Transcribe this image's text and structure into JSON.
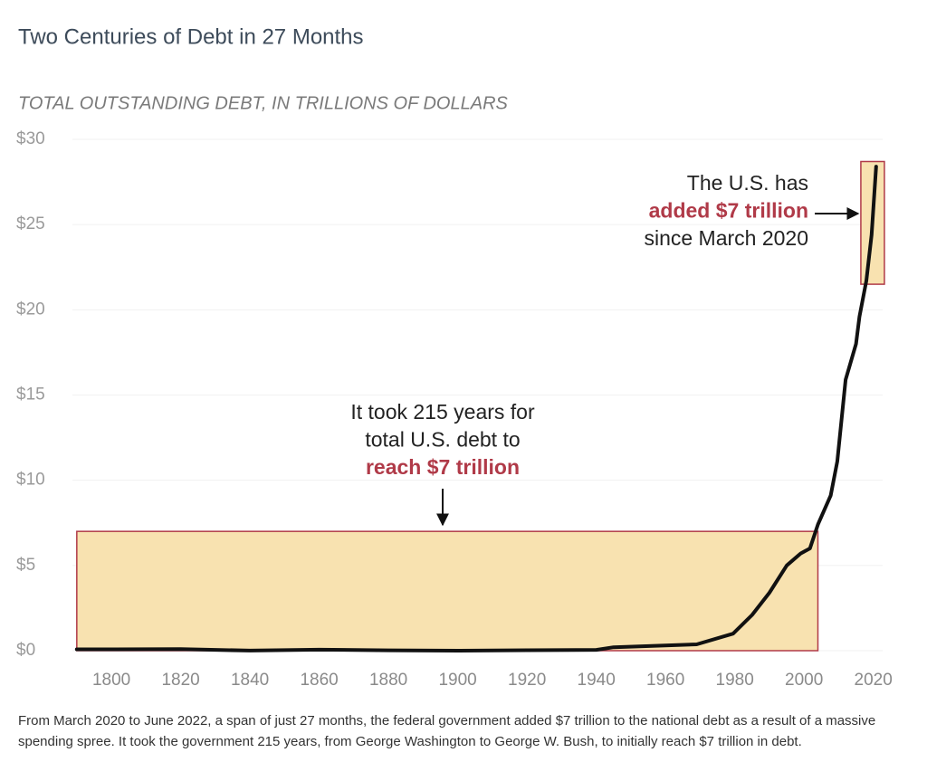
{
  "chart_data": {
    "type": "line",
    "title": "Two Centuries of Debt in 27 Months",
    "subtitle": "TOTAL OUTSTANDING DEBT, IN TRILLIONS OF DOLLARS",
    "x": [
      1790,
      1800,
      1820,
      1840,
      1860,
      1880,
      1900,
      1920,
      1940,
      1945,
      1969,
      1979.5,
      1985,
      1990,
      1995,
      1999,
      2001.7,
      2004,
      2007.7,
      2009.6,
      2012,
      2015,
      2016,
      2018,
      2019.5,
      2020.8
    ],
    "values": [
      0.08,
      0.08,
      0.09,
      0.004,
      0.06,
      0.02,
      0.002,
      0.026,
      0.05,
      0.2,
      0.37,
      1.0,
      2.1,
      3.4,
      5.0,
      5.7,
      6.0,
      7.4,
      9.1,
      11.1,
      15.9,
      18.0,
      19.6,
      21.7,
      24.4,
      28.4
    ],
    "color": "#111111",
    "xlim": [
      1789,
      2024
    ],
    "ylim": [
      0,
      30
    ],
    "xticks": [
      1800,
      1820,
      1840,
      1860,
      1880,
      1900,
      1920,
      1940,
      1960,
      1980,
      2000,
      2020
    ],
    "yticks": [
      {
        "value": 0,
        "label": "$0"
      },
      {
        "value": 5,
        "label": "$5"
      },
      {
        "value": 10,
        "label": "$10"
      },
      {
        "value": 15,
        "label": "$15"
      },
      {
        "value": 20,
        "label": "$20"
      },
      {
        "value": 25,
        "label": "$25"
      },
      {
        "value": 30,
        "label": "$30"
      }
    ],
    "grid": true,
    "highlights": [
      {
        "x": [
          1790,
          2004
        ],
        "y": [
          0,
          7
        ]
      },
      {
        "x": [
          2016.4,
          2023.2
        ],
        "y": [
          21.5,
          28.7
        ]
      }
    ],
    "annotations": [
      {
        "lines": [
          {
            "text": "The U.S. has"
          },
          {
            "text": "added $7 trillion",
            "emphasis": true
          },
          {
            "text": "since March 2020"
          }
        ]
      },
      {
        "lines": [
          {
            "text": "It took 215 years for"
          },
          {
            "text": "total U.S. debt to"
          },
          {
            "text": "reach $7 trillion",
            "emphasis": true
          }
        ]
      }
    ],
    "note": "From March 2020 to June 2022, a span of just 27 months, the federal government added $7 trillion to the national debt as a result of a massive spending spree. It took the government 215 years, from George Washington to George W. Bush, to initially reach $7 trillion in debt."
  }
}
